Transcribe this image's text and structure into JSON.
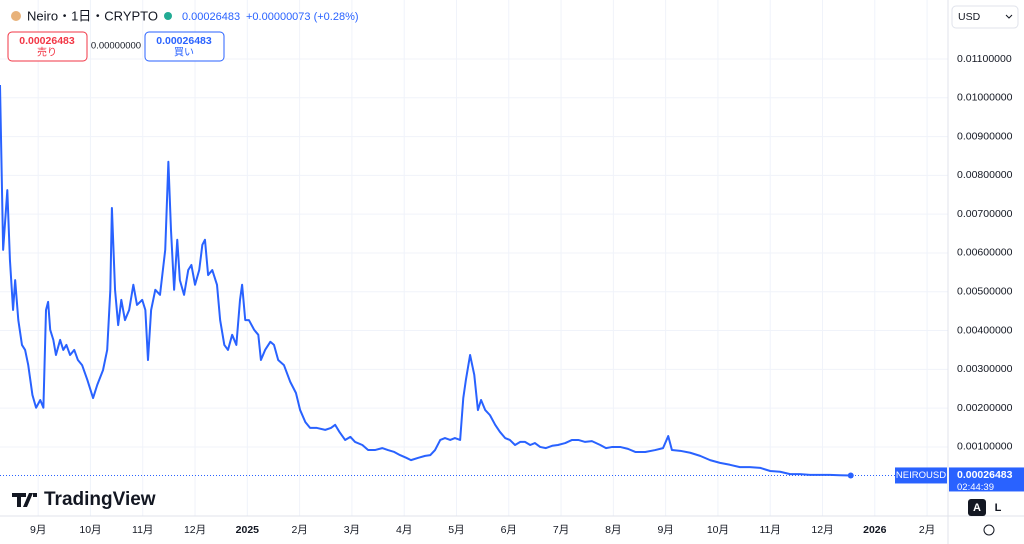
{
  "header": {
    "symbol": "Neiro・1日・CRYPTO",
    "price": "0.00026483",
    "change": "+0.00000073 (+0.28%)",
    "sell_price": "0.00026483",
    "sell_label": "売り",
    "spread": "0.00000000",
    "buy_price": "0.00026483",
    "buy_label": "買い",
    "currency": "USD",
    "brand": "TradingView",
    "auto_button": "A",
    "log_button": "L"
  },
  "chart_data": {
    "type": "line",
    "grid": true,
    "x": [
      -0.73,
      -0.67,
      -0.59,
      -0.54,
      -0.48,
      -0.44,
      -0.38,
      -0.31,
      -0.25,
      -0.19,
      -0.11,
      -0.04,
      0.04,
      0.1,
      0.15,
      0.19,
      0.23,
      0.29,
      0.34,
      0.42,
      0.48,
      0.54,
      0.61,
      0.69,
      0.76,
      0.84,
      0.94,
      1.05,
      1.13,
      1.24,
      1.32,
      1.38,
      1.41,
      1.47,
      1.53,
      1.59,
      1.66,
      1.74,
      1.82,
      1.89,
      1.99,
      2.05,
      2.1,
      2.16,
      2.24,
      2.33,
      2.43,
      2.49,
      2.54,
      2.6,
      2.66,
      2.71,
      2.79,
      2.87,
      2.93,
      3.0,
      3.08,
      3.14,
      3.19,
      3.25,
      3.33,
      3.42,
      3.48,
      3.56,
      3.63,
      3.71,
      3.79,
      3.86,
      3.9,
      3.96,
      4.03,
      4.13,
      4.21,
      4.26,
      4.34,
      4.44,
      4.51,
      4.59,
      4.7,
      4.82,
      4.93,
      5.01,
      5.11,
      5.2,
      5.33,
      5.49,
      5.6,
      5.68,
      5.76,
      5.87,
      5.97,
      6.06,
      6.2,
      6.31,
      6.44,
      6.58,
      6.69,
      6.81,
      6.92,
      7.04,
      7.13,
      7.27,
      7.4,
      7.5,
      7.59,
      7.69,
      7.78,
      7.88,
      7.97,
      8.07,
      8.13,
      8.18,
      8.26,
      8.34,
      8.41,
      8.47,
      8.55,
      8.64,
      8.74,
      8.83,
      8.93,
      9.02,
      9.12,
      9.22,
      9.31,
      9.41,
      9.5,
      9.6,
      9.71,
      9.83,
      9.94,
      10.08,
      10.21,
      10.33,
      10.46,
      10.59,
      10.75,
      10.86,
      10.98,
      11.13,
      11.28,
      11.42,
      11.61,
      11.8,
      11.95,
      12.05,
      12.12,
      12.28,
      12.47,
      12.66,
      12.85,
      13.04,
      13.23,
      13.42,
      13.61,
      13.81,
      14.0,
      14.19,
      14.38,
      14.57,
      14.76,
      14.95,
      15.14,
      15.33,
      15.54
    ],
    "series": [
      {
        "name": "NEIROUSD",
        "color": "#2962ff",
        "values": [
          0.01033,
          0.00608,
          0.00762,
          0.00582,
          0.00453,
          0.0053,
          0.00427,
          0.00363,
          0.0035,
          0.00311,
          0.00234,
          0.00201,
          0.00221,
          0.00201,
          0.00453,
          0.00474,
          0.00402,
          0.00376,
          0.00337,
          0.00376,
          0.0035,
          0.00363,
          0.00337,
          0.0035,
          0.00324,
          0.00311,
          0.00273,
          0.00226,
          0.0026,
          0.00298,
          0.0035,
          0.00505,
          0.00716,
          0.00505,
          0.00414,
          0.00479,
          0.00427,
          0.00453,
          0.00518,
          0.00466,
          0.00479,
          0.00453,
          0.00324,
          0.00453,
          0.00505,
          0.00492,
          0.00608,
          0.00835,
          0.00659,
          0.00505,
          0.00634,
          0.0053,
          0.00492,
          0.00556,
          0.00569,
          0.00518,
          0.00556,
          0.00621,
          0.00634,
          0.00543,
          0.00556,
          0.00518,
          0.00427,
          0.00363,
          0.0035,
          0.00389,
          0.00363,
          0.00479,
          0.00518,
          0.00427,
          0.00427,
          0.00402,
          0.00389,
          0.00324,
          0.0035,
          0.00371,
          0.00363,
          0.00324,
          0.00311,
          0.00268,
          0.00239,
          0.00195,
          0.00164,
          0.00149,
          0.00149,
          0.00144,
          0.00149,
          0.00157,
          0.00139,
          0.00118,
          0.00126,
          0.00113,
          0.00105,
          0.00092,
          0.00092,
          0.00097,
          0.00092,
          0.00087,
          0.00079,
          0.00072,
          0.00066,
          0.00072,
          0.00077,
          0.00079,
          0.00092,
          0.00118,
          0.00123,
          0.00118,
          0.00123,
          0.00118,
          0.00226,
          0.00273,
          0.00337,
          0.00286,
          0.00195,
          0.00221,
          0.00195,
          0.00182,
          0.00157,
          0.00139,
          0.00123,
          0.00118,
          0.00105,
          0.00113,
          0.00113,
          0.00105,
          0.0011,
          0.001,
          0.00097,
          0.00103,
          0.00105,
          0.0011,
          0.00118,
          0.00118,
          0.00113,
          0.00115,
          0.00105,
          0.00097,
          0.001,
          0.001,
          0.00095,
          0.00087,
          0.00087,
          0.00092,
          0.00097,
          0.00128,
          0.00092,
          0.0009,
          0.00085,
          0.00077,
          0.00066,
          0.00059,
          0.00054,
          0.00048,
          0.00048,
          0.00046,
          0.00038,
          0.00036,
          0.0003,
          0.0003,
          0.00028,
          0.00028,
          0.00028,
          0.00027,
          0.00026483
        ]
      }
    ],
    "xlim": [
      -0.73,
      17.4
    ],
    "xticks": [
      {
        "value": 0,
        "label": "9月"
      },
      {
        "value": 1,
        "label": "10月"
      },
      {
        "value": 2,
        "label": "11月"
      },
      {
        "value": 3,
        "label": "12月"
      },
      {
        "value": 4,
        "label": "2025"
      },
      {
        "value": 5,
        "label": "2月"
      },
      {
        "value": 6,
        "label": "3月"
      },
      {
        "value": 7,
        "label": "4月"
      },
      {
        "value": 8,
        "label": "5月"
      },
      {
        "value": 9,
        "label": "6月"
      },
      {
        "value": 10,
        "label": "7月"
      },
      {
        "value": 11,
        "label": "8月"
      },
      {
        "value": 12,
        "label": "9月"
      },
      {
        "value": 13,
        "label": "10月"
      },
      {
        "value": 14,
        "label": "11月"
      },
      {
        "value": 15,
        "label": "12月"
      },
      {
        "value": 16,
        "label": "2026"
      },
      {
        "value": 17,
        "label": "2月"
      }
    ],
    "ylim": [
      -0.00078,
      0.01252
    ],
    "yticks": [
      {
        "value": 0.001,
        "label": "0.00100000"
      },
      {
        "value": 0.002,
        "label": "0.00200000"
      },
      {
        "value": 0.003,
        "label": "0.00300000"
      },
      {
        "value": 0.004,
        "label": "0.00400000"
      },
      {
        "value": 0.005,
        "label": "0.00500000"
      },
      {
        "value": 0.006,
        "label": "0.00600000"
      },
      {
        "value": 0.007,
        "label": "0.00700000"
      },
      {
        "value": 0.008,
        "label": "0.00800000"
      },
      {
        "value": 0.009,
        "label": "0.00900000"
      },
      {
        "value": 0.01,
        "label": "0.01000000"
      },
      {
        "value": 0.011,
        "label": "0.01100000"
      }
    ],
    "last_price": {
      "symbol": "NEIROUSD",
      "value": 0.00026483,
      "countdown": "02:44:39"
    }
  }
}
